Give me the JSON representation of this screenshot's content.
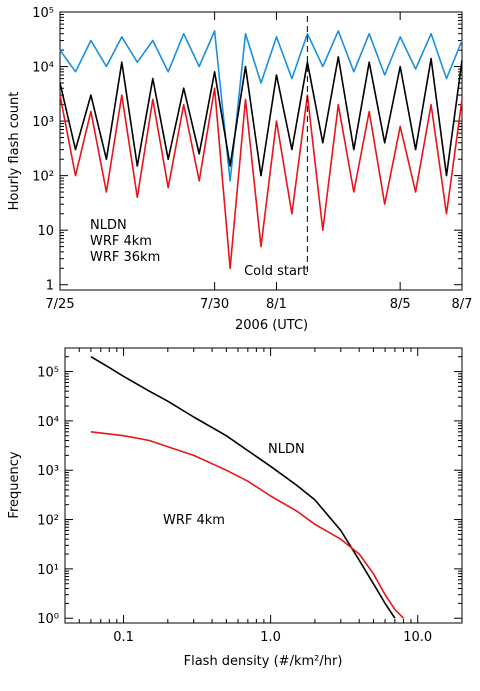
{
  "chart_data": [
    {
      "type": "line",
      "xlabel": "2006 (UTC)",
      "ylabel": "Hourly flash count",
      "yscale": "log",
      "ylim": [
        0.8,
        100000
      ],
      "xlim_days": [
        0,
        13
      ],
      "x_tick_labels": [
        {
          "label": "7/25",
          "day": 0
        },
        {
          "label": "7/30",
          "day": 5
        },
        {
          "label": "8/1",
          "day": 7
        },
        {
          "label": "8/5",
          "day": 11
        },
        {
          "label": "8/7",
          "day": 13
        }
      ],
      "y_tick_labels": [
        "1",
        "10",
        "10²",
        "10³",
        "10⁴",
        "10⁵"
      ],
      "annotation": {
        "text": "Cold start",
        "day": 8
      },
      "legend": [
        {
          "name": "NLDN",
          "color": "#000000"
        },
        {
          "name": "WRF 4km",
          "color": "#e8141c"
        },
        {
          "name": "WRF 36km",
          "color": "#1a8fe0"
        }
      ],
      "series": [
        {
          "name": "NLDN",
          "color": "#000000",
          "day": [
            0.0,
            0.5,
            1.0,
            1.5,
            2.0,
            2.5,
            3.0,
            3.5,
            4.0,
            4.5,
            5.0,
            5.5,
            6.0,
            6.5,
            7.0,
            7.5,
            8.0,
            8.5,
            9.0,
            9.5,
            10.0,
            10.5,
            11.0,
            11.5,
            12.0,
            12.5,
            13.0
          ],
          "values": [
            5000,
            300,
            3000,
            200,
            12000,
            150,
            6000,
            200,
            4000,
            250,
            8000,
            150,
            10000,
            100,
            7000,
            300,
            12000,
            400,
            15000,
            300,
            12000,
            400,
            10000,
            300,
            14000,
            100,
            13000
          ]
        },
        {
          "name": "WRF 4km",
          "color": "#e8141c",
          "day": [
            0.0,
            0.5,
            1.0,
            1.5,
            2.0,
            2.5,
            3.0,
            3.5,
            4.0,
            4.5,
            5.0,
            5.5,
            6.0,
            6.5,
            7.0,
            7.5,
            8.0,
            8.5,
            9.0,
            9.5,
            10.0,
            10.5,
            11.0,
            11.5,
            12.0,
            12.5,
            13.0
          ],
          "values": [
            3000,
            100,
            1500,
            50,
            3000,
            40,
            2500,
            60,
            2000,
            80,
            4000,
            2,
            2500,
            5,
            1000,
            20,
            3000,
            10,
            2000,
            50,
            1500,
            30,
            800,
            50,
            2000,
            20,
            2500
          ]
        },
        {
          "name": "WRF 36km",
          "color": "#1a8fe0",
          "day": [
            0.0,
            0.5,
            1.0,
            1.5,
            2.0,
            2.5,
            3.0,
            3.5,
            4.0,
            4.5,
            5.0,
            5.5,
            6.0,
            6.5,
            7.0,
            7.5,
            8.0,
            8.5,
            9.0,
            9.5,
            10.0,
            10.5,
            11.0,
            11.5,
            12.0,
            12.5,
            13.0
          ],
          "values": [
            20000,
            8000,
            30000,
            10000,
            35000,
            12000,
            30000,
            8000,
            40000,
            10000,
            45000,
            80,
            40000,
            5000,
            35000,
            6000,
            40000,
            10000,
            45000,
            8000,
            40000,
            7000,
            35000,
            9000,
            40000,
            6000,
            30000
          ]
        }
      ]
    },
    {
      "type": "line",
      "xlabel": "Flash density (#/km²/hr)",
      "ylabel": "Frequency",
      "xscale": "log",
      "yscale": "log",
      "xlim": [
        0.04,
        20
      ],
      "ylim": [
        0.8,
        300000
      ],
      "x_tick_labels": [
        {
          "label": "0.1",
          "value": 0.1
        },
        {
          "label": "1.0",
          "value": 1.0
        },
        {
          "label": "10.0",
          "value": 10.0
        }
      ],
      "y_tick_labels": [
        "10⁰",
        "10¹",
        "10²",
        "10³",
        "10⁴",
        "10⁵"
      ],
      "series": [
        {
          "name": "NLDN",
          "color": "#000000",
          "x": [
            0.06,
            0.08,
            0.1,
            0.15,
            0.2,
            0.3,
            0.5,
            0.7,
            1.0,
            1.5,
            2.0,
            3.0,
            4.0,
            5.0,
            6.0,
            7.0
          ],
          "values": [
            200000,
            120000,
            80000,
            40000,
            25000,
            12000,
            5000,
            2500,
            1200,
            500,
            250,
            60,
            15,
            5,
            2,
            1
          ]
        },
        {
          "name": "WRF 4km",
          "color": "#e8141c",
          "x": [
            0.06,
            0.1,
            0.15,
            0.2,
            0.3,
            0.5,
            0.7,
            1.0,
            1.5,
            2.0,
            3.0,
            4.0,
            5.0,
            6.0,
            7.0,
            8.0
          ],
          "values": [
            6000,
            5000,
            4000,
            3000,
            2000,
            1000,
            600,
            300,
            150,
            80,
            40,
            20,
            8,
            3,
            1.5,
            1
          ]
        }
      ]
    }
  ]
}
